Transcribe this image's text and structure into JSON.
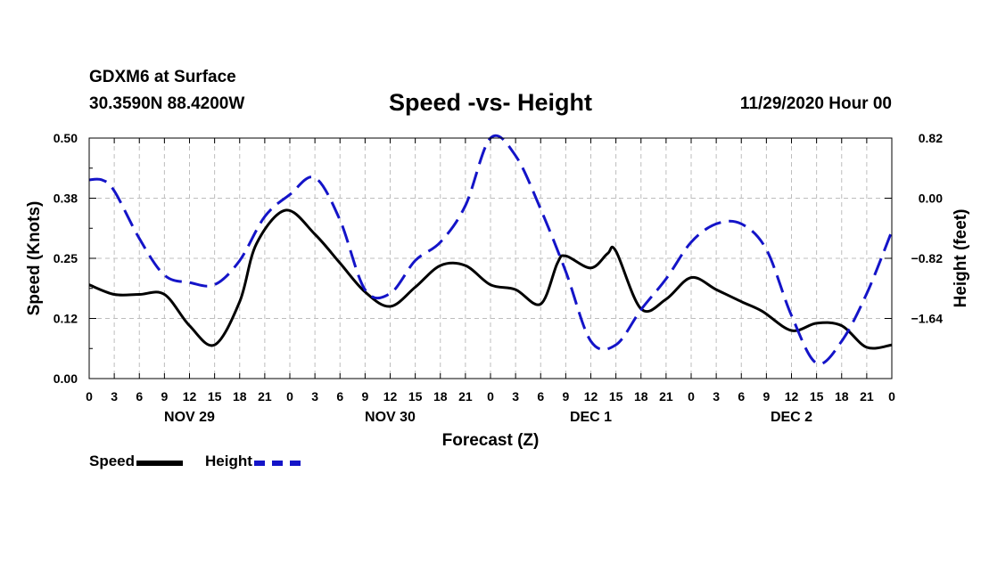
{
  "header": {
    "station": "GDXM6 at Surface",
    "coords": "30.3590N 88.4200W",
    "title": "Speed -vs- Height",
    "datestamp": "11/29/2020 Hour 00"
  },
  "legend": {
    "speed": "Speed",
    "height": "Height"
  },
  "colors": {
    "speed": "#000000",
    "height": "#1414c8",
    "grid": "#bdbdbd"
  },
  "chart_data": {
    "type": "line",
    "title": "Speed -vs- Height",
    "xlabel": "Forecast (Z)",
    "ylabel": "Speed (Knots)",
    "y2label": "Height (feet)",
    "xlim": [
      0,
      96
    ],
    "ylim": [
      0,
      0.5
    ],
    "y2lim": [
      -2.46,
      0.82
    ],
    "x_tick_labels": [
      "0",
      "3",
      "6",
      "9",
      "12",
      "15",
      "18",
      "21",
      "0",
      "3",
      "6",
      "9",
      "12",
      "15",
      "18",
      "21",
      "0",
      "3",
      "6",
      "9",
      "12",
      "15",
      "18",
      "21",
      "0",
      "3",
      "6",
      "9",
      "12",
      "15",
      "18",
      "21",
      "0"
    ],
    "date_labels": [
      {
        "x": 12,
        "label": "NOV 29"
      },
      {
        "x": 36,
        "label": "NOV 30"
      },
      {
        "x": 60,
        "label": "DEC 1"
      },
      {
        "x": 84,
        "label": "DEC 2"
      }
    ],
    "y_ticks": [
      {
        "value": 0.0,
        "label": "0.00"
      },
      {
        "value": 0.125,
        "label": "0.12"
      },
      {
        "value": 0.25,
        "label": "0.25"
      },
      {
        "value": 0.375,
        "label": "0.38"
      },
      {
        "value": 0.5,
        "label": "0.50"
      }
    ],
    "y2_ticks": [
      {
        "value": 0.82,
        "label": "0.82"
      },
      {
        "value": 0.0,
        "label": "0.00"
      },
      {
        "value": -0.82,
        "label": "−0.82"
      },
      {
        "value": -1.64,
        "label": "−1.64"
      }
    ],
    "grid": true,
    "series": [
      {
        "name": "Speed",
        "axis": "left",
        "style": "solid",
        "x": [
          0,
          3,
          6,
          9,
          12,
          15,
          18,
          20,
          23.5,
          27,
          30,
          33,
          36,
          39,
          42,
          45,
          48,
          51,
          54,
          56,
          57,
          60,
          62,
          63,
          66,
          69,
          72,
          75,
          78,
          80.5,
          84,
          87,
          90,
          93,
          96
        ],
        "y": [
          0.195,
          0.175,
          0.175,
          0.175,
          0.11,
          0.07,
          0.16,
          0.28,
          0.35,
          0.3,
          0.24,
          0.18,
          0.15,
          0.19,
          0.235,
          0.235,
          0.195,
          0.185,
          0.155,
          0.24,
          0.255,
          0.23,
          0.26,
          0.265,
          0.145,
          0.165,
          0.21,
          0.185,
          0.16,
          0.14,
          0.1,
          0.115,
          0.11,
          0.065,
          0.07
        ]
      },
      {
        "name": "Height",
        "axis": "right",
        "style": "dashed",
        "x": [
          0,
          1.5,
          3,
          6,
          9,
          12,
          15,
          18,
          21,
          24,
          27,
          30,
          33,
          36,
          39,
          42,
          45,
          48,
          51,
          54,
          57,
          60,
          63,
          66,
          69,
          72,
          75,
          78,
          81,
          84,
          87,
          90,
          93,
          96
        ],
        "y": [
          0.25,
          0.25,
          0.1,
          -0.55,
          -1.05,
          -1.15,
          -1.18,
          -0.85,
          -0.25,
          0.05,
          0.28,
          -0.3,
          -1.25,
          -1.3,
          -0.85,
          -0.6,
          -0.1,
          0.82,
          0.58,
          -0.15,
          -1.0,
          -1.95,
          -2.0,
          -1.52,
          -1.1,
          -0.6,
          -0.35,
          -0.35,
          -0.7,
          -1.6,
          -2.25,
          -1.95,
          -1.3,
          -0.45
        ]
      }
    ]
  }
}
